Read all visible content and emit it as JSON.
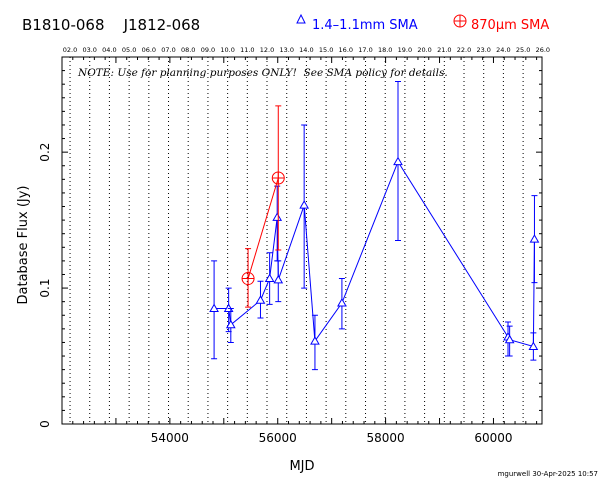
{
  "header": {
    "source_names": "B1810-068    J1812-068",
    "legend_1mm": "1.4–1.1mm SMA",
    "legend_870": "870μm SMA",
    "color_1mm": "#0000ff",
    "color_870": "#ff0000"
  },
  "note": "NOTE: Use for planning purposes ONLY!  See SMA policy for details.",
  "footer": {
    "credit": "mgurwell 30-Apr-2025 10:57"
  },
  "chart_data": {
    "type": "scatter",
    "title": "",
    "xlabel": "MJD",
    "ylabel": "Database Flux (Jy)",
    "xlim": [
      52000,
      60900
    ],
    "ylim": [
      0,
      0.27
    ],
    "x_ticks": [
      54000,
      56000,
      58000,
      60000
    ],
    "y_ticks": [
      0,
      0.1,
      0.2
    ],
    "y_tick_labels": [
      "0",
      "0.1",
      "0.2"
    ],
    "top_axis_labels": [
      "02.0",
      "03.0",
      "04.0",
      "05.0",
      "06.0",
      "07.0",
      "08.0",
      "09.0",
      "10.0",
      "11.0",
      "12.0",
      "13.0",
      "14.0",
      "15.0",
      "16.0",
      "17.0",
      "18.0",
      "19.0",
      "20.0",
      "21.0",
      "22.0",
      "23.0",
      "24.0",
      "25.0",
      "26.0"
    ],
    "dotted_lines_mjd": [
      52149,
      52514,
      52879,
      53245,
      53610,
      53975,
      54340,
      54706,
      55071,
      55436,
      55801,
      56167,
      56532,
      56897,
      57262,
      57628,
      57993,
      58358,
      58723,
      59089,
      59454,
      59819,
      60184,
      60550
    ],
    "series": [
      {
        "name": "1.4–1.1mm SMA",
        "marker": "triangle",
        "connected": true,
        "points": [
          {
            "x": 54820,
            "y": 0.085,
            "lo": 0.048,
            "hi": 0.12
          },
          {
            "x": 55090,
            "y": 0.085,
            "lo": 0.068,
            "hi": 0.1
          },
          {
            "x": 55130,
            "y": 0.073,
            "lo": 0.06,
            "hi": 0.085
          },
          {
            "x": 55680,
            "y": 0.091,
            "lo": 0.078,
            "hi": 0.105
          },
          {
            "x": 55850,
            "y": 0.107,
            "lo": 0.088,
            "hi": 0.126
          },
          {
            "x": 55990,
            "y": 0.152,
            "lo": 0.12,
            "hi": 0.175
          },
          {
            "x": 56010,
            "y": 0.106,
            "lo": 0.09,
            "hi": 0.12
          },
          {
            "x": 56490,
            "y": 0.161,
            "lo": 0.1,
            "hi": 0.22
          },
          {
            "x": 56690,
            "y": 0.061,
            "lo": 0.04,
            "hi": 0.08
          },
          {
            "x": 57190,
            "y": 0.089,
            "lo": 0.07,
            "hi": 0.107
          },
          {
            "x": 58230,
            "y": 0.193,
            "lo": 0.135,
            "hi": 0.252
          },
          {
            "x": 60270,
            "y": 0.064,
            "lo": 0.05,
            "hi": 0.075
          },
          {
            "x": 60300,
            "y": 0.062,
            "lo": 0.05,
            "hi": 0.072
          },
          {
            "x": 60740,
            "y": 0.057,
            "lo": 0.047,
            "hi": 0.067
          },
          {
            "x": 60760,
            "y": 0.136,
            "lo": 0.104,
            "hi": 0.168
          }
        ]
      },
      {
        "name": "870μm SMA",
        "marker": "circle-plus",
        "connected": true,
        "points": [
          {
            "x": 55450,
            "y": 0.107,
            "lo": 0.086,
            "hi": 0.129
          },
          {
            "x": 56010,
            "y": 0.181,
            "lo": 0.128,
            "hi": 0.234
          }
        ]
      }
    ]
  }
}
